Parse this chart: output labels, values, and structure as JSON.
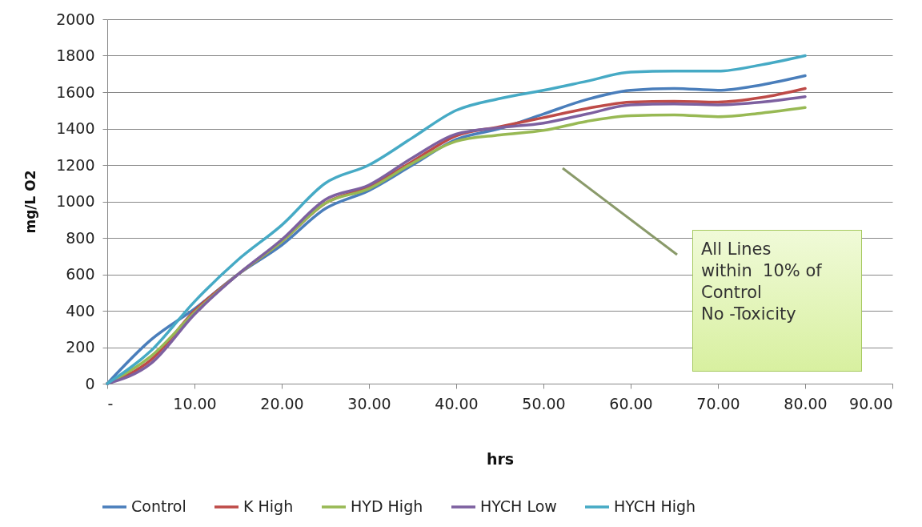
{
  "chart_data": {
    "type": "line",
    "xlabel": "hrs",
    "ylabel": "mg/L O2",
    "x": [
      0,
      5,
      10,
      15,
      20,
      25,
      30,
      35,
      40,
      45,
      50,
      55,
      60,
      65,
      70,
      75,
      80
    ],
    "series": [
      {
        "name": "Control",
        "color": "#4a7ebb",
        "values": [
          0,
          240,
          410,
          600,
          760,
          960,
          1060,
          1200,
          1340,
          1400,
          1480,
          1560,
          1610,
          1620,
          1610,
          1640,
          1690
        ]
      },
      {
        "name": "K High",
        "color": "#be4b48",
        "values": [
          0,
          130,
          400,
          600,
          780,
          990,
          1080,
          1220,
          1360,
          1410,
          1460,
          1510,
          1545,
          1550,
          1545,
          1570,
          1620
        ]
      },
      {
        "name": "HYD High",
        "color": "#98b954",
        "values": [
          0,
          150,
          390,
          600,
          780,
          990,
          1070,
          1210,
          1330,
          1365,
          1390,
          1440,
          1470,
          1475,
          1465,
          1485,
          1515
        ]
      },
      {
        "name": "HYCH Low",
        "color": "#7d60a0",
        "values": [
          0,
          110,
          380,
          600,
          790,
          1010,
          1090,
          1240,
          1370,
          1405,
          1430,
          1480,
          1530,
          1535,
          1530,
          1545,
          1575
        ]
      },
      {
        "name": "HYCH High",
        "color": "#46aac5",
        "values": [
          0,
          180,
          450,
          680,
          870,
          1100,
          1200,
          1350,
          1500,
          1565,
          1610,
          1660,
          1710,
          1715,
          1715,
          1750,
          1800
        ]
      }
    ],
    "xlim": [
      0,
      90
    ],
    "xticks": [
      {
        "value": 0,
        "label": "-"
      },
      {
        "value": 10,
        "label": "10.00"
      },
      {
        "value": 20,
        "label": "20.00"
      },
      {
        "value": 30,
        "label": "30.00"
      },
      {
        "value": 40,
        "label": "40.00"
      },
      {
        "value": 50,
        "label": "50.00"
      },
      {
        "value": 60,
        "label": "60.00"
      },
      {
        "value": 70,
        "label": "70.00"
      },
      {
        "value": 80,
        "label": "80.00"
      },
      {
        "value": 90,
        "label": "90.00"
      }
    ],
    "ylim": [
      0,
      2000
    ],
    "yticks": [
      0,
      200,
      400,
      600,
      800,
      1000,
      1200,
      1400,
      1600,
      1800,
      2000
    ],
    "grid": "y",
    "legend": "bottom",
    "marker": "none",
    "line_style": "solid",
    "annotations": [
      "All Lines\nwithin  10% of\nControl\nNo -Toxicity"
    ]
  }
}
